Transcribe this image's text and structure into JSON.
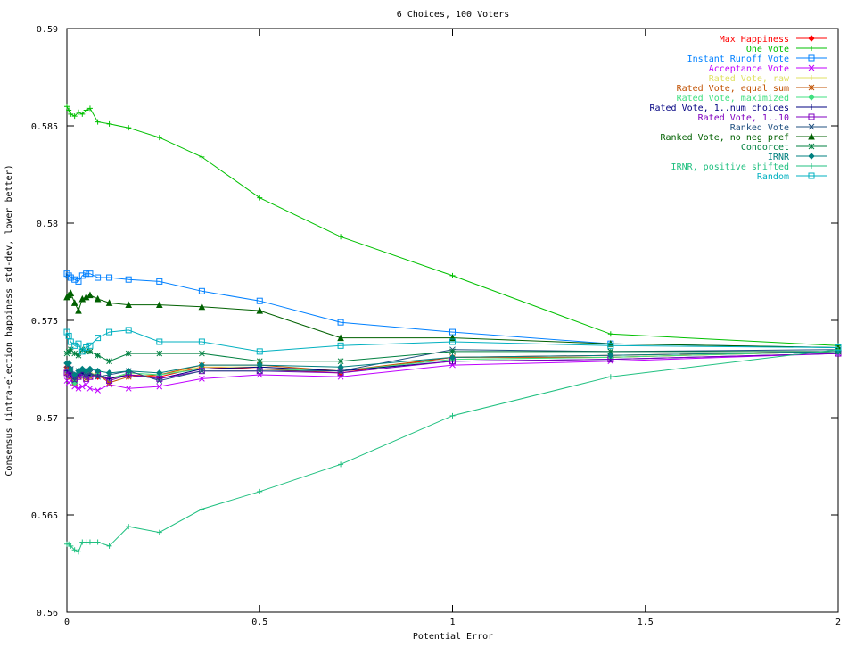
{
  "chart_data": {
    "type": "line",
    "title": "6 Choices, 100 Voters",
    "xlabel": "Potential Error",
    "ylabel": "Consensus (intra-election happiness std-dev, lower better)",
    "xlim": [
      0,
      2
    ],
    "ylim": [
      0.56,
      0.59
    ],
    "x_ticks": [
      0,
      0.5,
      1,
      1.5,
      2
    ],
    "x_tick_labels": [
      "0",
      "0.5",
      "1",
      "1.5",
      "2"
    ],
    "y_ticks": [
      0.56,
      0.565,
      0.57,
      0.575,
      0.58,
      0.585,
      0.59
    ],
    "y_tick_labels": [
      "0.56",
      "0.565",
      "0.57",
      "0.575",
      "0.58",
      "0.585",
      "0.59"
    ],
    "grid": false,
    "legend_position": "top-right",
    "x": [
      0,
      0.005,
      0.01,
      0.02,
      0.03,
      0.04,
      0.05,
      0.06,
      0.08,
      0.11,
      0.16,
      0.24,
      0.35,
      0.5,
      0.71,
      1,
      1.41,
      2
    ],
    "series": [
      {
        "name": "Max Happiness",
        "color": "#ff0000",
        "marker": "diamond",
        "values": [
          0.5726,
          0.5726,
          0.5723,
          0.5719,
          0.5722,
          0.5723,
          0.5721,
          0.5722,
          0.5721,
          0.572,
          0.5722,
          0.5721,
          0.5726,
          0.5725,
          0.5723,
          0.5731,
          0.5732,
          0.5734
        ]
      },
      {
        "name": "One Vote",
        "color": "#00c000",
        "marker": "plus",
        "values": [
          0.586,
          0.5858,
          0.5856,
          0.5855,
          0.5857,
          0.5856,
          0.5858,
          0.5859,
          0.5852,
          0.5851,
          0.5849,
          0.5844,
          0.5834,
          0.5813,
          0.5793,
          0.5773,
          0.5743,
          0.5737
        ]
      },
      {
        "name": "Instant Runoff Vote",
        "color": "#0080ff",
        "marker": "square",
        "values": [
          0.5774,
          0.5773,
          0.5772,
          0.5771,
          0.577,
          0.5773,
          0.5774,
          0.5774,
          0.5772,
          0.5772,
          0.5771,
          0.577,
          0.5765,
          0.576,
          0.5749,
          0.5744,
          0.5738,
          0.5736
        ]
      },
      {
        "name": "Acceptance Vote",
        "color": "#c000ff",
        "marker": "x",
        "values": [
          0.5719,
          0.5718,
          0.5719,
          0.5716,
          0.5715,
          0.5716,
          0.5717,
          0.5715,
          0.5714,
          0.5717,
          0.5715,
          0.5716,
          0.572,
          0.5722,
          0.5721,
          0.5727,
          0.5729,
          0.5733
        ]
      },
      {
        "name": "Rated Vote, raw",
        "color": "#e0e060",
        "marker": "plus",
        "values": [
          0.5725,
          0.5724,
          0.5722,
          0.572,
          0.5722,
          0.5721,
          0.5722,
          0.5723,
          0.5722,
          0.5719,
          0.5723,
          0.5722,
          0.5726,
          0.5726,
          0.5724,
          0.573,
          0.5731,
          0.5734
        ]
      },
      {
        "name": "Rated Vote, equal sum",
        "color": "#c05000",
        "marker": "star",
        "values": [
          0.5723,
          0.5723,
          0.5721,
          0.5718,
          0.5721,
          0.5722,
          0.572,
          0.5721,
          0.5722,
          0.5718,
          0.5721,
          0.5722,
          0.5727,
          0.5727,
          0.5724,
          0.5731,
          0.5731,
          0.5734
        ]
      },
      {
        "name": "Rated Vote, maximized",
        "color": "#40e080",
        "marker": "diamond",
        "values": [
          0.5724,
          0.5724,
          0.5722,
          0.5718,
          0.5722,
          0.5722,
          0.5721,
          0.5722,
          0.5722,
          0.572,
          0.5723,
          0.5722,
          0.5725,
          0.5725,
          0.5724,
          0.573,
          0.5731,
          0.5734
        ]
      },
      {
        "name": "Rated Vote, 1..num choices",
        "color": "#000080",
        "marker": "plus",
        "values": [
          0.5724,
          0.5723,
          0.5722,
          0.572,
          0.5722,
          0.5723,
          0.5721,
          0.5722,
          0.5722,
          0.572,
          0.5722,
          0.572,
          0.5725,
          0.5726,
          0.5724,
          0.5729,
          0.573,
          0.5733
        ]
      },
      {
        "name": "Rated Vote, 1..10",
        "color": "#8000c0",
        "marker": "square",
        "values": [
          0.5723,
          0.5722,
          0.5722,
          0.572,
          0.5721,
          0.5722,
          0.572,
          0.5721,
          0.5722,
          0.5719,
          0.5722,
          0.572,
          0.5724,
          0.5724,
          0.5723,
          0.5729,
          0.573,
          0.5733
        ]
      },
      {
        "name": "Ranked Vote",
        "color": "#205080",
        "marker": "x",
        "values": [
          0.5727,
          0.5727,
          0.5725,
          0.5719,
          0.5724,
          0.5724,
          0.5722,
          0.5723,
          0.5721,
          0.5722,
          0.5724,
          0.5719,
          0.5724,
          0.5724,
          0.5724,
          0.5735,
          0.5734,
          0.5735
        ]
      },
      {
        "name": "Ranked Vote, no neg pref",
        "color": "#006000",
        "marker": "triangle",
        "values": [
          0.5762,
          0.5763,
          0.5764,
          0.5759,
          0.5755,
          0.5761,
          0.5762,
          0.5763,
          0.5761,
          0.5759,
          0.5758,
          0.5758,
          0.5757,
          0.5755,
          0.5741,
          0.5741,
          0.5738,
          0.5736
        ]
      },
      {
        "name": "Condorcet",
        "color": "#008040",
        "marker": "star",
        "values": [
          0.5733,
          0.5734,
          0.5735,
          0.5733,
          0.5732,
          0.5735,
          0.5734,
          0.5734,
          0.5732,
          0.5729,
          0.5733,
          0.5733,
          0.5733,
          0.5729,
          0.5729,
          0.5734,
          0.5734,
          0.5734
        ]
      },
      {
        "name": "IRNR",
        "color": "#008080",
        "marker": "diamond",
        "values": [
          0.5728,
          0.5728,
          0.5725,
          0.5722,
          0.5724,
          0.5725,
          0.5724,
          0.5725,
          0.5724,
          0.5723,
          0.5724,
          0.5723,
          0.5727,
          0.5727,
          0.5726,
          0.5731,
          0.5732,
          0.5734
        ]
      },
      {
        "name": "IRNR, positive shifted",
        "color": "#20c080",
        "marker": "plus",
        "values": [
          0.5635,
          0.5635,
          0.5634,
          0.5632,
          0.5631,
          0.5636,
          0.5636,
          0.5636,
          0.5636,
          0.5634,
          0.5644,
          0.5641,
          0.5653,
          0.5662,
          0.5676,
          0.5701,
          0.5721,
          0.5735
        ]
      },
      {
        "name": "Random",
        "color": "#00b0c0",
        "marker": "square",
        "values": [
          0.5744,
          0.5742,
          0.5739,
          0.5737,
          0.5738,
          0.5734,
          0.5736,
          0.5737,
          0.5741,
          0.5744,
          0.5745,
          0.5739,
          0.5739,
          0.5734,
          0.5737,
          0.5739,
          0.5737,
          0.5736
        ]
      }
    ]
  }
}
